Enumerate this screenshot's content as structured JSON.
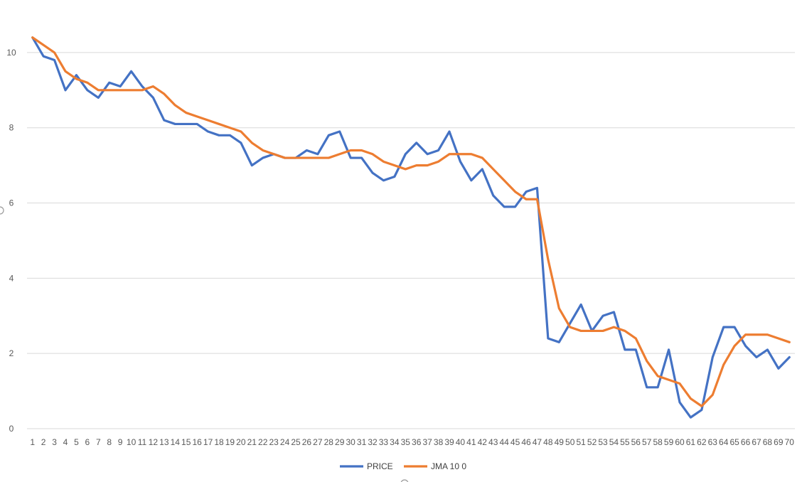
{
  "chart_data": {
    "type": "line",
    "title": "",
    "xlabel": "",
    "ylabel": "",
    "ylim": [
      0,
      11
    ],
    "yticks": [
      0,
      2,
      4,
      6,
      8,
      10
    ],
    "grid": true,
    "legend_position": "bottom",
    "x": [
      1,
      2,
      3,
      4,
      5,
      6,
      7,
      8,
      9,
      10,
      11,
      12,
      13,
      14,
      15,
      16,
      17,
      18,
      19,
      20,
      21,
      22,
      23,
      24,
      25,
      26,
      27,
      28,
      29,
      30,
      31,
      32,
      33,
      34,
      35,
      36,
      37,
      38,
      39,
      40,
      41,
      42,
      43,
      44,
      45,
      46,
      47,
      48,
      49,
      50,
      51,
      52,
      53,
      54,
      55,
      56,
      57,
      58,
      59,
      60,
      61,
      62,
      63,
      64,
      65,
      66,
      67,
      68,
      69,
      70
    ],
    "series": [
      {
        "name": "PRICE",
        "color": "#4472c4",
        "values": [
          10.4,
          9.9,
          9.8,
          9.0,
          9.4,
          9.0,
          8.8,
          9.2,
          9.1,
          9.5,
          9.1,
          8.8,
          8.2,
          8.1,
          8.1,
          8.1,
          7.9,
          7.8,
          7.8,
          7.6,
          7.0,
          7.2,
          7.3,
          7.2,
          7.2,
          7.4,
          7.3,
          7.8,
          7.9,
          7.2,
          7.2,
          6.8,
          6.6,
          6.7,
          7.3,
          7.6,
          7.3,
          7.4,
          7.9,
          7.1,
          6.6,
          6.9,
          6.2,
          5.9,
          5.9,
          6.3,
          6.4,
          2.4,
          2.3,
          2.8,
          3.3,
          2.6,
          3.0,
          3.1,
          2.1,
          2.1,
          1.1,
          1.1,
          2.1,
          0.7,
          0.3,
          0.5,
          1.9,
          2.7,
          2.7,
          2.2,
          1.9,
          2.1,
          1.6,
          1.9
        ]
      },
      {
        "name": "JMA 10 0",
        "color": "#ed7d31",
        "values": [
          10.4,
          10.2,
          10.0,
          9.5,
          9.3,
          9.2,
          9.0,
          9.0,
          9.0,
          9.0,
          9.0,
          9.1,
          8.9,
          8.6,
          8.4,
          8.3,
          8.2,
          8.1,
          8.0,
          7.9,
          7.6,
          7.4,
          7.3,
          7.2,
          7.2,
          7.2,
          7.2,
          7.2,
          7.3,
          7.4,
          7.4,
          7.3,
          7.1,
          7.0,
          6.9,
          7.0,
          7.0,
          7.1,
          7.3,
          7.3,
          7.3,
          7.2,
          6.9,
          6.6,
          6.3,
          6.1,
          6.1,
          4.5,
          3.2,
          2.7,
          2.6,
          2.6,
          2.6,
          2.7,
          2.6,
          2.4,
          1.8,
          1.4,
          1.3,
          1.2,
          0.8,
          0.6,
          0.9,
          1.7,
          2.2,
          2.5,
          2.5,
          2.5,
          2.4,
          2.3
        ]
      }
    ]
  }
}
